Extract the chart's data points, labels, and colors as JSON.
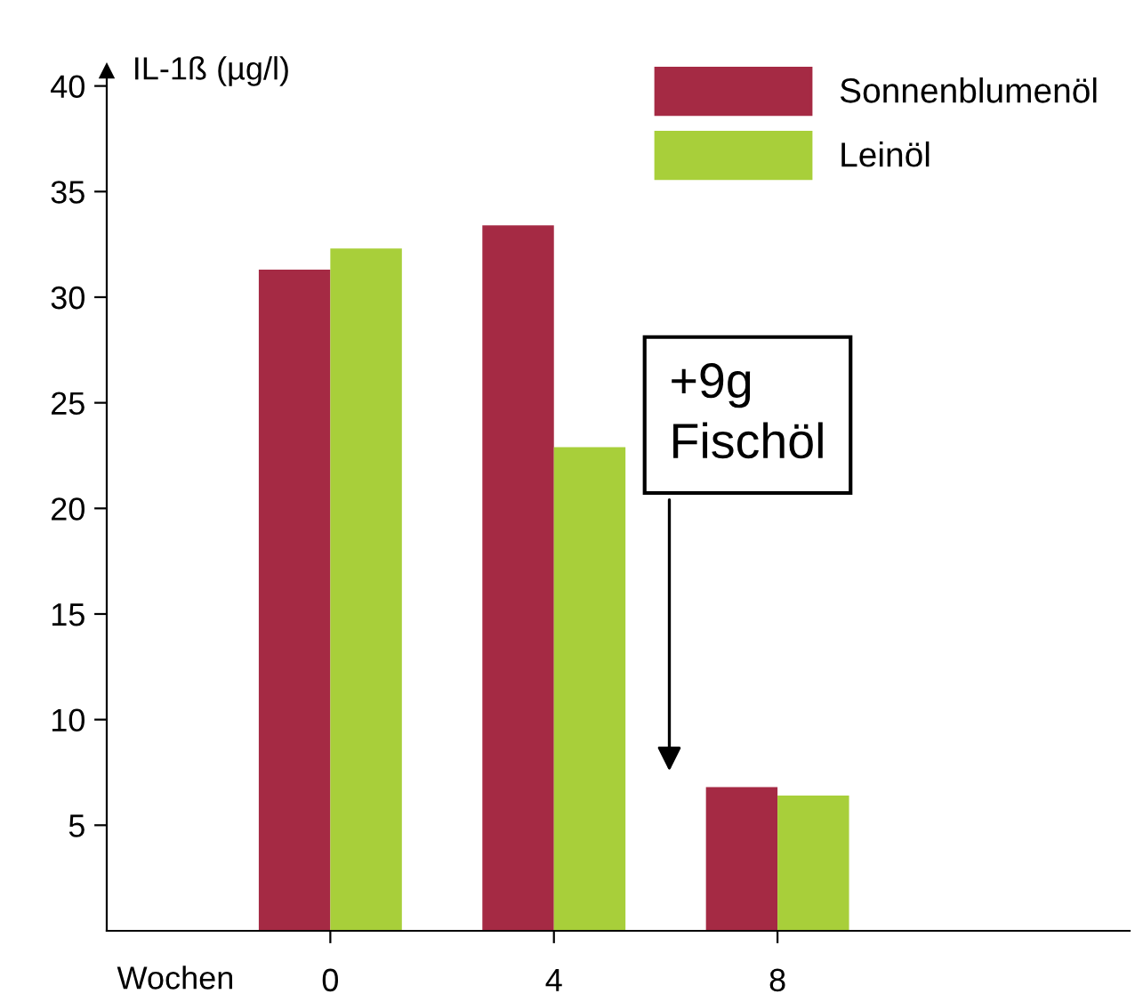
{
  "chart_data": {
    "type": "bar",
    "ylabel": "IL-1ß (µg/l)",
    "xlabel": "Wochen",
    "x": [
      0,
      4,
      8
    ],
    "xlim": [
      -4,
      14.3
    ],
    "xticks": [
      0,
      4,
      8
    ],
    "ylim": [
      0,
      40.7
    ],
    "yticks": [
      5,
      10,
      15,
      20,
      25,
      30,
      35,
      40
    ],
    "series": [
      {
        "name": "Sonnenblumenöl",
        "color": "#a52a44",
        "values": [
          31.3,
          33.4,
          6.8
        ]
      },
      {
        "name": "Leinöl",
        "color": "#a8cf3a",
        "values": [
          32.3,
          22.9,
          6.4
        ]
      }
    ],
    "annotations": [
      "+9g\nFischöl"
    ],
    "legend": "top right",
    "grid": false
  }
}
